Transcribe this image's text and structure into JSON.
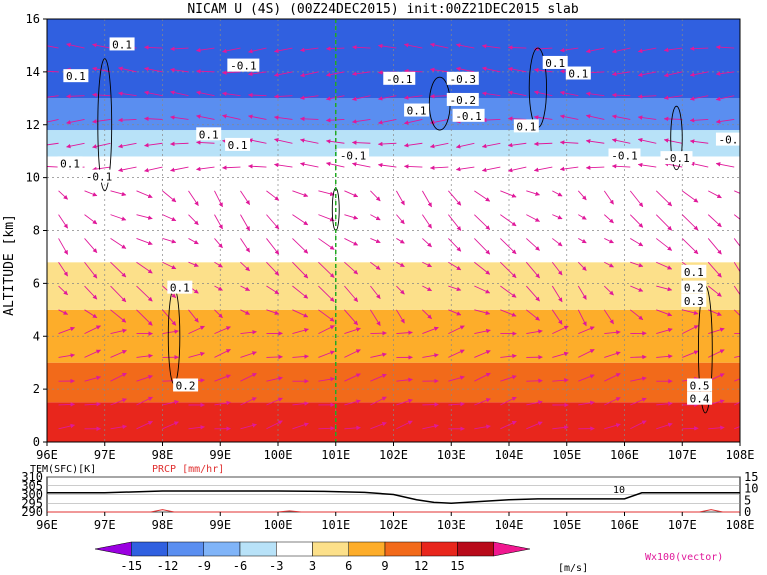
{
  "title": "NICAM U (4S) (00Z24DEC2015) init:00Z21DEC2015 slab",
  "colors": {
    "contour_line": "#000000",
    "vector": "#e0189a",
    "vertical_marker": "#22aa22",
    "precip_line": "#e03030"
  },
  "chart_data": [
    {
      "type": "heatmap",
      "title": "NICAM U (4S) (00Z24DEC2015) init:00Z21DEC2015 slab",
      "xlabel": "",
      "ylabel": "ALTITUDE [km]",
      "x_ticks": [
        "96E",
        "97E",
        "98E",
        "99E",
        "100E",
        "101E",
        "102E",
        "103E",
        "104E",
        "105E",
        "106E",
        "107E",
        "108E"
      ],
      "y_ticks": [
        "0",
        "2",
        "4",
        "6",
        "8",
        "10",
        "12",
        "14",
        "16"
      ],
      "xlim": [
        96,
        108
      ],
      "ylim": [
        0,
        16
      ],
      "grid": true,
      "vertical_marker_lon": 101,
      "bands": [
        {
          "from": 0.0,
          "to": 1.5,
          "level": 12
        },
        {
          "from": 1.5,
          "to": 3.0,
          "level": 9
        },
        {
          "from": 3.0,
          "to": 5.0,
          "level": 6
        },
        {
          "from": 5.0,
          "to": 6.8,
          "level": 3
        },
        {
          "from": 6.8,
          "to": 9.8,
          "level": 0
        },
        {
          "from": 9.8,
          "to": 10.8,
          "level": -3
        },
        {
          "from": 10.8,
          "to": 11.8,
          "level": -6
        },
        {
          "from": 11.8,
          "to": 13.0,
          "level": -12
        },
        {
          "from": 13.0,
          "to": 16.0,
          "level": -15
        }
      ],
      "contour_labels": [
        {
          "text": "0.1",
          "lon": 97.3,
          "alt": 15.0
        },
        {
          "text": "-0.1",
          "lon": 99.4,
          "alt": 14.2
        },
        {
          "text": "0.1",
          "lon": 96.5,
          "alt": 13.8
        },
        {
          "text": "-0.1",
          "lon": 102.1,
          "alt": 13.7
        },
        {
          "text": "-0.3",
          "lon": 103.2,
          "alt": 13.7
        },
        {
          "text": "0.1",
          "lon": 104.8,
          "alt": 14.3
        },
        {
          "text": "0.1",
          "lon": 105.2,
          "alt": 13.9
        },
        {
          "text": "-0.2",
          "lon": 103.2,
          "alt": 12.9
        },
        {
          "text": "0.1",
          "lon": 102.4,
          "alt": 12.5
        },
        {
          "text": "-0.1",
          "lon": 103.3,
          "alt": 12.3
        },
        {
          "text": "0.1",
          "lon": 104.3,
          "alt": 11.9
        },
        {
          "text": "0.1",
          "lon": 98.8,
          "alt": 11.6
        },
        {
          "text": "0.1",
          "lon": 99.3,
          "alt": 11.2
        },
        {
          "text": "-0.1",
          "lon": 101.3,
          "alt": 10.8
        },
        {
          "text": "-0.1",
          "lon": 106.0,
          "alt": 10.8
        },
        {
          "text": "-0.1",
          "lon": 106.9,
          "alt": 10.7
        },
        {
          "text": "-0.",
          "lon": 107.8,
          "alt": 11.4
        },
        {
          "text": "0.1",
          "lon": 96.4,
          "alt": 10.5
        },
        {
          "text": "-0.1",
          "lon": 96.9,
          "alt": 10.0
        },
        {
          "text": "0.1",
          "lon": 98.3,
          "alt": 5.8
        },
        {
          "text": "0.1",
          "lon": 107.2,
          "alt": 6.4
        },
        {
          "text": "0.2",
          "lon": 107.2,
          "alt": 5.8
        },
        {
          "text": "0.3",
          "lon": 107.2,
          "alt": 5.3
        },
        {
          "text": "0.2",
          "lon": 98.4,
          "alt": 2.1
        },
        {
          "text": "0.5",
          "lon": 107.3,
          "alt": 2.1
        },
        {
          "text": "0.4",
          "lon": 107.3,
          "alt": 1.6
        }
      ]
    },
    {
      "type": "line",
      "title": "",
      "series": [
        {
          "name": "TEM(SFC)[K]",
          "x": [
            96,
            97,
            98,
            99,
            100,
            100.8,
            101.5,
            102,
            102.4,
            102.7,
            103,
            103.5,
            104,
            104.5,
            105,
            105.5,
            106,
            106.3,
            108
          ],
          "values": [
            301,
            301,
            302,
            302,
            302,
            301.8,
            301.2,
            300,
            297,
            295.5,
            295,
            296,
            297,
            297.5,
            297.5,
            297.5,
            297.5,
            301,
            301
          ]
        },
        {
          "name": "PRCP [mm/hr]",
          "x": [
            96,
            97.8,
            98,
            98.2,
            100,
            100.2,
            100.4,
            106,
            107.3,
            107.5,
            107.7,
            108
          ],
          "values": [
            0,
            0,
            1,
            0,
            0,
            0.5,
            0,
            0,
            0,
            1,
            0,
            0
          ]
        }
      ],
      "left_ticks": [
        "310",
        "305",
        "300",
        "295",
        "290"
      ],
      "right_ticks": [
        "15",
        "10",
        "5",
        "0"
      ],
      "x_ticks": [
        "96E",
        "97E",
        "98E",
        "99E",
        "100E",
        "101E",
        "102E",
        "103E",
        "104E",
        "105E",
        "106E",
        "107E",
        "108E"
      ],
      "inline_label": "10",
      "ylim_left": [
        290,
        310
      ],
      "ylim_right": [
        0,
        15
      ]
    }
  ],
  "colorbar": {
    "levels": [
      "-15",
      "-12",
      "-9",
      "-6",
      "-3",
      "3",
      "6",
      "9",
      "12",
      "15"
    ],
    "unit": "[m/s]",
    "colors": [
      "#9a00e0",
      "#3060e0",
      "#5a8ef0",
      "#80b4f8",
      "#b8e2f8",
      "#ffffff",
      "#fce08a",
      "#fdad2a",
      "#f26a1a",
      "#e8261c",
      "#b80a1a",
      "#f01890"
    ]
  },
  "vector_legend": "Wx100(vector)"
}
